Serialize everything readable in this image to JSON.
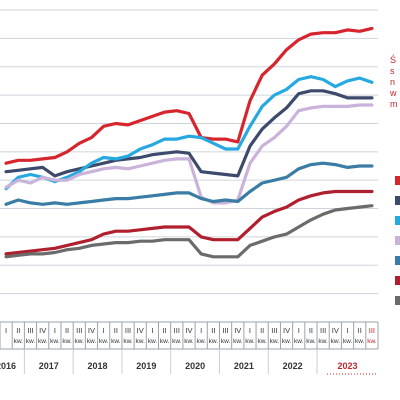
{
  "side_note": {
    "lines": [
      "Ś",
      "s",
      "n",
      "w",
      "m"
    ],
    "color": "#c0272d"
  },
  "legend_swatches": [
    {
      "color": "#d7252e"
    },
    {
      "color": "#3d4a6b"
    },
    {
      "color": "#26a9e0"
    },
    {
      "color": "#c9b3da"
    },
    {
      "color": "#3a7ca5"
    },
    {
      "color": "#b01f2e"
    },
    {
      "color": "#6b6b6b"
    }
  ],
  "chart_data": {
    "type": "line",
    "title": "",
    "xlabel": "",
    "ylabel": "",
    "grid": true,
    "ylim": [
      0,
      11
    ],
    "year_labels": [
      "2016",
      "2017",
      "2018",
      "2019",
      "2020",
      "2021",
      "2022",
      "2023"
    ],
    "year_label_colors": [
      "#333333",
      "#333333",
      "#333333",
      "#333333",
      "#333333",
      "#333333",
      "#333333",
      "#c0272d"
    ],
    "quarter_labels": [
      {
        "q": "I",
        "kw": ""
      },
      {
        "q": "II",
        "kw": "kw."
      },
      {
        "q": "III",
        "kw": "kw."
      },
      {
        "q": "IV",
        "kw": "kw."
      },
      {
        "q": "I",
        "kw": "kw."
      },
      {
        "q": "II",
        "kw": "kw."
      },
      {
        "q": "III",
        "kw": "kw."
      },
      {
        "q": "IV",
        "kw": "kw."
      },
      {
        "q": "I",
        "kw": "kw."
      },
      {
        "q": "II",
        "kw": "kw."
      },
      {
        "q": "III",
        "kw": "kw."
      },
      {
        "q": "IV",
        "kw": "kw."
      },
      {
        "q": "I",
        "kw": "kw."
      },
      {
        "q": "II",
        "kw": "kw."
      },
      {
        "q": "III",
        "kw": "kw."
      },
      {
        "q": "IV",
        "kw": "kw."
      },
      {
        "q": "I",
        "kw": "kw."
      },
      {
        "q": "II",
        "kw": "kw."
      },
      {
        "q": "III",
        "kw": "kw."
      },
      {
        "q": "IV",
        "kw": "kw."
      },
      {
        "q": "I",
        "kw": "kw."
      },
      {
        "q": "II",
        "kw": "kw."
      },
      {
        "q": "III",
        "kw": "kw."
      },
      {
        "q": "IV",
        "kw": "kw."
      },
      {
        "q": "I",
        "kw": "kw."
      },
      {
        "q": "II",
        "kw": "kw."
      },
      {
        "q": "III",
        "kw": "kw."
      },
      {
        "q": "IV",
        "kw": "kw."
      },
      {
        "q": "I",
        "kw": "kw."
      },
      {
        "q": "II",
        "kw": "kw."
      },
      {
        "q": "III",
        "kw": "kw."
      }
    ],
    "series": [
      {
        "color": "#d7252e",
        "values": [
          5.6,
          5.7,
          5.7,
          5.75,
          5.8,
          6.0,
          6.3,
          6.5,
          6.9,
          7.0,
          6.95,
          7.1,
          7.25,
          7.4,
          7.45,
          7.35,
          6.5,
          6.45,
          6.45,
          6.35,
          7.8,
          8.7,
          9.1,
          9.6,
          9.95,
          10.15,
          10.2,
          10.2,
          10.3,
          10.25,
          10.35
        ]
      },
      {
        "color": "#3d4a6b",
        "values": [
          5.3,
          5.35,
          5.4,
          5.45,
          5.15,
          5.3,
          5.4,
          5.5,
          5.6,
          5.7,
          5.75,
          5.8,
          5.9,
          5.95,
          6.0,
          5.95,
          5.3,
          5.25,
          5.2,
          5.15,
          6.2,
          6.8,
          7.2,
          7.55,
          8.05,
          8.15,
          8.15,
          8.05,
          7.9,
          7.9,
          7.9
        ]
      },
      {
        "color": "#26a9e0",
        "values": [
          4.7,
          5.1,
          5.2,
          5.1,
          4.95,
          5.1,
          5.3,
          5.6,
          5.8,
          5.75,
          5.85,
          6.1,
          6.25,
          6.45,
          6.45,
          6.55,
          6.5,
          6.3,
          6.1,
          6.1,
          6.9,
          7.6,
          8.0,
          8.2,
          8.55,
          8.65,
          8.55,
          8.3,
          8.5,
          8.6,
          8.45
        ]
      },
      {
        "color": "#c9b3da",
        "values": [
          4.75,
          5.0,
          4.9,
          5.1,
          5.0,
          5.0,
          5.2,
          5.3,
          5.4,
          5.45,
          5.4,
          5.5,
          5.6,
          5.7,
          5.75,
          5.75,
          4.4,
          4.2,
          4.2,
          4.3,
          5.6,
          6.2,
          6.5,
          6.9,
          7.45,
          7.55,
          7.6,
          7.6,
          7.6,
          7.65,
          7.65
        ]
      },
      {
        "color": "#3a7ca5",
        "values": [
          4.15,
          4.3,
          4.2,
          4.15,
          4.2,
          4.15,
          4.2,
          4.25,
          4.3,
          4.35,
          4.35,
          4.4,
          4.45,
          4.5,
          4.55,
          4.55,
          4.35,
          4.25,
          4.3,
          4.25,
          4.6,
          4.9,
          5.0,
          5.1,
          5.4,
          5.55,
          5.6,
          5.55,
          5.45,
          5.5,
          5.5
        ]
      },
      {
        "color": "#b01f2e",
        "values": [
          2.4,
          2.45,
          2.5,
          2.55,
          2.6,
          2.7,
          2.8,
          2.9,
          3.1,
          3.2,
          3.2,
          3.25,
          3.3,
          3.35,
          3.35,
          3.35,
          3.0,
          2.9,
          2.9,
          2.9,
          3.3,
          3.7,
          3.9,
          4.05,
          4.3,
          4.45,
          4.55,
          4.6,
          4.6,
          4.6,
          4.6
        ]
      },
      {
        "color": "#6b6b6b",
        "values": [
          2.3,
          2.35,
          2.4,
          2.4,
          2.45,
          2.55,
          2.6,
          2.7,
          2.75,
          2.8,
          2.8,
          2.85,
          2.85,
          2.9,
          2.9,
          2.9,
          2.4,
          2.3,
          2.3,
          2.3,
          2.7,
          2.85,
          3.0,
          3.1,
          3.35,
          3.6,
          3.8,
          3.95,
          4.0,
          4.05,
          4.1
        ]
      }
    ]
  }
}
